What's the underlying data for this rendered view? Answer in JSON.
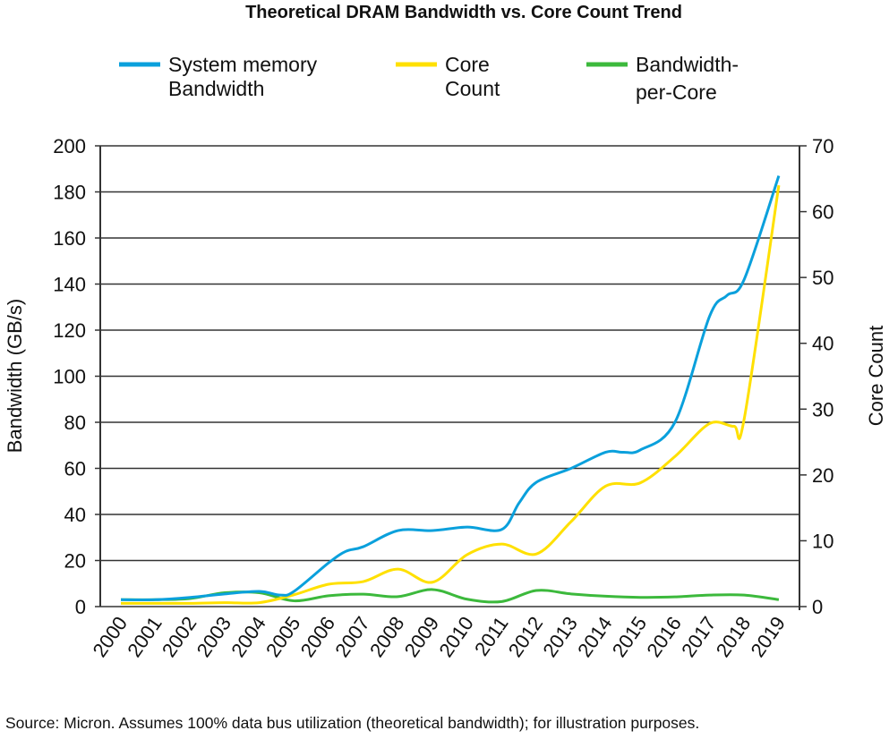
{
  "chart_data": {
    "type": "line",
    "title": "Theoretical DRAM Bandwidth vs. Core Count Trend",
    "ylabel": "Bandwidth (GB/s)",
    "y2label": "Core Count",
    "ylim": [
      0,
      200
    ],
    "y2lim": [
      0,
      70
    ],
    "yticks": [
      "0",
      "20",
      "40",
      "60",
      "80",
      "100",
      "120",
      "140",
      "160",
      "180",
      "200"
    ],
    "y2ticks": [
      "0",
      "10",
      "20",
      "30",
      "40",
      "50",
      "60",
      "70"
    ],
    "xticks": [
      "2000",
      "2001",
      "2002",
      "2003",
      "2004",
      "2005",
      "2006",
      "2007",
      "2008",
      "2009",
      "2010",
      "2011",
      "2012",
      "2013",
      "2014",
      "2015",
      "2016",
      "2017",
      "2018",
      "2019"
    ],
    "grid": true,
    "legend_position": "top",
    "series": [
      {
        "name": "System memory Bandwidth",
        "name_lines": [
          "System memory",
          "Bandwidth"
        ],
        "axis": "left",
        "color": "#0aa0dc",
        "points": [
          [
            2000,
            3
          ],
          [
            2001,
            3
          ],
          [
            2002,
            4
          ],
          [
            2003,
            5.5
          ],
          [
            2004,
            6.6
          ],
          [
            2004.6,
            5
          ],
          [
            2005,
            6.6
          ],
          [
            2006,
            19
          ],
          [
            2006.5,
            24
          ],
          [
            2007,
            26
          ],
          [
            2008,
            33
          ],
          [
            2009,
            33
          ],
          [
            2010,
            34.5
          ],
          [
            2011,
            33.5
          ],
          [
            2011.5,
            45
          ],
          [
            2012,
            54
          ],
          [
            2013,
            60
          ],
          [
            2014,
            67
          ],
          [
            2014.5,
            67
          ],
          [
            2015,
            68
          ],
          [
            2016,
            80
          ],
          [
            2017,
            126
          ],
          [
            2017.5,
            135
          ],
          [
            2018,
            142
          ],
          [
            2019,
            187
          ]
        ]
      },
      {
        "name": "Core Count",
        "name_lines": [
          "Core",
          "Count"
        ],
        "axis": "right",
        "color": "#ffe000",
        "points": [
          [
            2000,
            0.5
          ],
          [
            2001,
            0.5
          ],
          [
            2002,
            0.5
          ],
          [
            2003,
            0.6
          ],
          [
            2004,
            0.6
          ],
          [
            2005,
            1.8
          ],
          [
            2006,
            3.4
          ],
          [
            2007,
            3.8
          ],
          [
            2008,
            5.7
          ],
          [
            2009,
            3.7
          ],
          [
            2010,
            7.9
          ],
          [
            2011,
            9.5
          ],
          [
            2012,
            8
          ],
          [
            2013,
            12.9
          ],
          [
            2014,
            18.3
          ],
          [
            2015,
            18.8
          ],
          [
            2016,
            22.8
          ],
          [
            2017,
            27.8
          ],
          [
            2017.7,
            27.4
          ],
          [
            2018,
            28.5
          ],
          [
            2019,
            64
          ]
        ]
      },
      {
        "name": "Bandwidth-per-Core",
        "name_lines": [
          "Bandwidth-",
          "per-Core"
        ],
        "axis": "left",
        "color": "#3cb93c",
        "points": [
          [
            2000,
            3
          ],
          [
            2001,
            3
          ],
          [
            2002,
            3.5
          ],
          [
            2003,
            6
          ],
          [
            2004,
            6
          ],
          [
            2005,
            2.5
          ],
          [
            2006,
            4.7
          ],
          [
            2007,
            5.4
          ],
          [
            2008,
            4.3
          ],
          [
            2009,
            7.4
          ],
          [
            2010,
            3.2
          ],
          [
            2011,
            2.2
          ],
          [
            2012,
            7
          ],
          [
            2013,
            5.5
          ],
          [
            2014,
            4.5
          ],
          [
            2015,
            4
          ],
          [
            2016,
            4.2
          ],
          [
            2017,
            5
          ],
          [
            2018,
            5
          ],
          [
            2019,
            3
          ]
        ]
      }
    ]
  },
  "source_note": "Source: Micron. Assumes 100% data bus utilization (theoretical bandwidth); for illustration purposes."
}
